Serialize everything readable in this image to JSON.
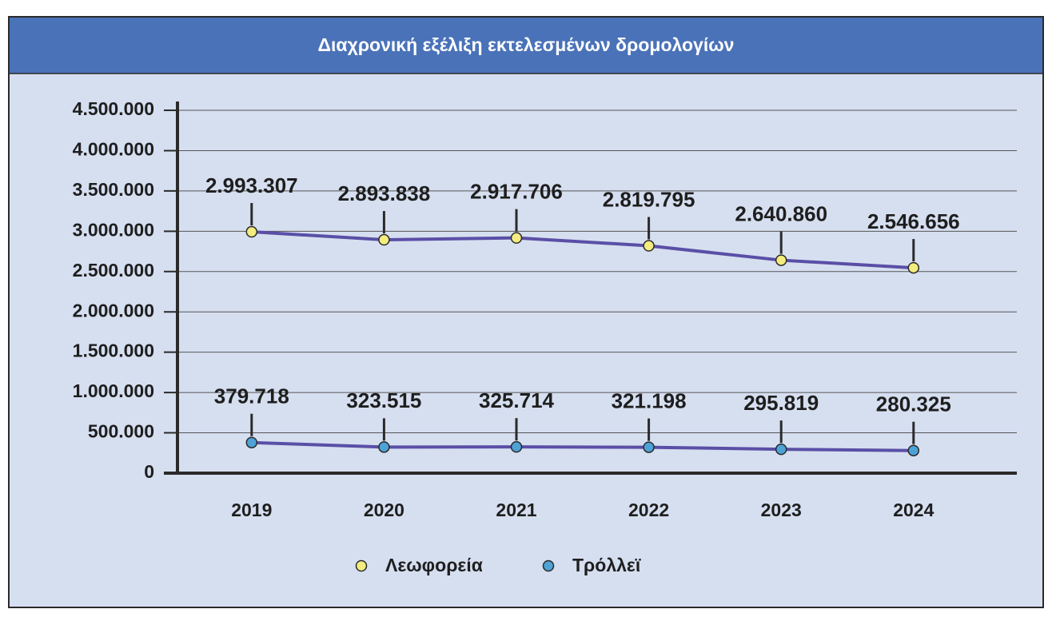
{
  "chart_data": {
    "type": "line",
    "title": "Διαχρονική εξέλιξη εκτελεσμένων δρομολογίων",
    "categories": [
      "2019",
      "2020",
      "2021",
      "2022",
      "2023",
      "2024"
    ],
    "series": [
      {
        "name": "Λεωφορεία",
        "color": "#f3ec7e",
        "line_color": "#5a4fa6",
        "values": [
          2993307,
          2893838,
          2917706,
          2819795,
          2640860,
          2546656
        ],
        "value_labels": [
          "2.993.307",
          "2.893.838",
          "2.917.706",
          "2.819.795",
          "2.640.860",
          "2.546.656"
        ]
      },
      {
        "name": "Τρόλλεϊ",
        "color": "#4da2d6",
        "line_color": "#5a4fa6",
        "values": [
          379718,
          323515,
          325714,
          321198,
          295819,
          280325
        ],
        "value_labels": [
          "379.718",
          "323.515",
          "325.714",
          "321.198",
          "295.819",
          "280.325"
        ]
      }
    ],
    "ylim": [
      0,
      4500000
    ],
    "yticks": [
      0,
      {
        "value": 500000,
        "label": "500.000"
      },
      {
        "value": 1000000,
        "label": "1.000.000"
      },
      {
        "value": 1500000,
        "label": "1.500.000"
      },
      {
        "value": 2000000,
        "label": "2.000.000"
      },
      {
        "value": 2500000,
        "label": "2.500.000"
      },
      {
        "value": 3000000,
        "label": "3.000.000"
      },
      {
        "value": 3500000,
        "label": "3.500.000"
      },
      {
        "value": 4000000,
        "label": "4.000.000"
      },
      {
        "value": 4500000,
        "label": "4.500.000"
      }
    ],
    "grid": true,
    "legend": "bottom"
  }
}
